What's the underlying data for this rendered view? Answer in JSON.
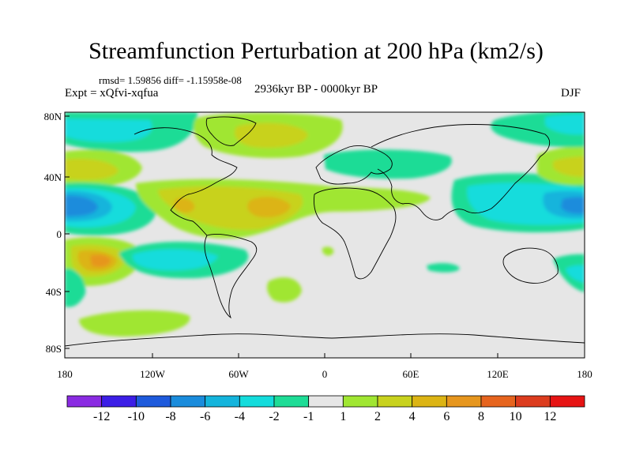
{
  "header": {
    "title": "Streamfunction Perturbation at 200 hPa (km2/s)",
    "stats": "rmsd= 1.59856 diff= -1.15958e-08",
    "experiment": "Expt = xQfvi-xqfua",
    "period": "2936kyr BP - 0000kyr BP",
    "season": "DJF"
  },
  "map": {
    "y_labels": [
      "80N",
      "40N",
      "0",
      "40S",
      "80S"
    ],
    "x_labels": [
      "180",
      "120W",
      "60W",
      "0",
      "60E",
      "120E",
      "180"
    ]
  },
  "colorbar": {
    "labels": [
      "-12",
      "-10",
      "-8",
      "-6",
      "-4",
      "-2",
      "-1",
      "1",
      "2",
      "4",
      "6",
      "8",
      "10",
      "12"
    ],
    "colors": [
      "#8a2be2",
      "#3c1ee6",
      "#1e5adc",
      "#1a8cdc",
      "#14b4dc",
      "#14dcdc",
      "#1edc96",
      "#e6e6e6",
      "#a0e632",
      "#c8d21e",
      "#dcb414",
      "#e6961e",
      "#e6641e",
      "#dc3c1e",
      "#e61414"
    ]
  }
}
